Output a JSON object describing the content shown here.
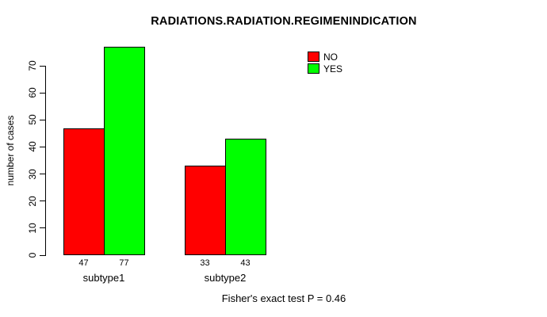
{
  "chart_data": {
    "type": "bar",
    "title": "RADIATIONS.RADIATION.REGIMENINDICATION",
    "xlabel": "",
    "ylabel": "number of cases",
    "categories": [
      "subtype1",
      "subtype2"
    ],
    "series": [
      {
        "name": "NO",
        "color": "#ff0000",
        "values": [
          47,
          33
        ]
      },
      {
        "name": "YES",
        "color": "#00ff00",
        "values": [
          77,
          43
        ]
      }
    ],
    "bar_value_labels_shown": true,
    "yticks": [
      0,
      10,
      20,
      30,
      40,
      50,
      60,
      70
    ],
    "ylim": [
      0,
      78
    ],
    "grid": false,
    "legend_position": "top-right",
    "legend_entries": [
      "NO",
      "YES"
    ],
    "annotation": "Fisher's exact test P = 0.46"
  }
}
